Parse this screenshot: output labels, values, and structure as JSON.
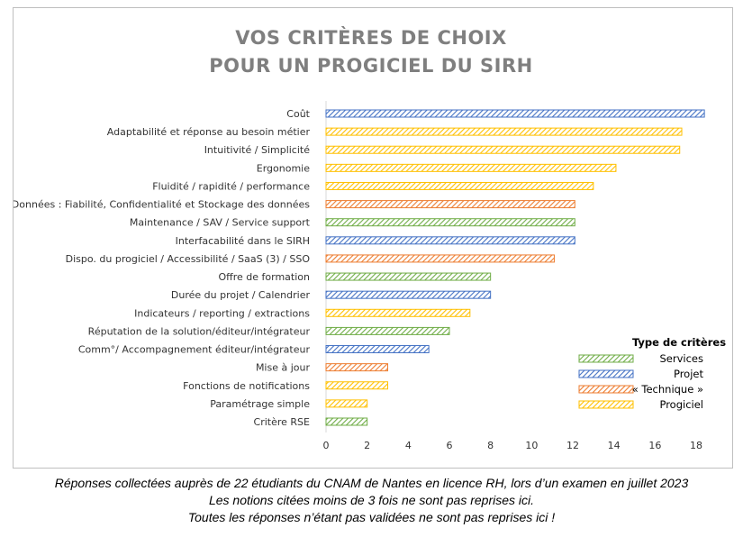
{
  "chart_data": {
    "type": "bar",
    "orientation": "horizontal",
    "title_lines": [
      "VOS CRITÈRES DE CHOIX",
      "POUR UN PROGICIEL DU SIRH"
    ],
    "xlim": [
      0,
      18
    ],
    "xticks": [
      0,
      2,
      4,
      6,
      8,
      10,
      12,
      14,
      16,
      18
    ],
    "legend": {
      "title": "Type de critères",
      "placement": "right",
      "entries": [
        {
          "name": "Services",
          "color": "#70ad47"
        },
        {
          "name": "Projet",
          "color": "#4472c4"
        },
        {
          "name": "« Technique »",
          "color": "#ed7d31"
        },
        {
          "name": "Progiciel",
          "color": "#ffc000"
        }
      ]
    },
    "bars": [
      {
        "label": "Coût",
        "value": 18.4,
        "type": "Projet"
      },
      {
        "label": "Adaptabilité et réponse au besoin métier",
        "value": 17.3,
        "type": "Progiciel"
      },
      {
        "label": "Intuitivité / Simplicité",
        "value": 17.2,
        "type": "Progiciel"
      },
      {
        "label": "Ergonomie",
        "value": 14.1,
        "type": "Progiciel"
      },
      {
        "label": "Fluidité / rapidité / performance",
        "value": 13.0,
        "type": "Progiciel"
      },
      {
        "label": "Données : Fiabilité, Confidentialité et Stockage des données",
        "value": 12.1,
        "type": "« Technique »"
      },
      {
        "label": "Maintenance / SAV / Service support",
        "value": 12.1,
        "type": "Services"
      },
      {
        "label": "Interfacabilité dans le SIRH",
        "value": 12.1,
        "type": "Projet"
      },
      {
        "label": "Dispo. du progiciel / Accessibilité / SaaS (3) / SSO",
        "value": 11.1,
        "type": "« Technique »"
      },
      {
        "label": "Offre de formation",
        "value": 8,
        "type": "Services"
      },
      {
        "label": "Durée du projet / Calendrier",
        "value": 8,
        "type": "Projet"
      },
      {
        "label": "Indicateurs / reporting / extractions",
        "value": 7,
        "type": "Progiciel"
      },
      {
        "label": "Réputation de la solution/éditeur/intégrateur",
        "value": 6,
        "type": "Services"
      },
      {
        "label": "Comm°/ Accompagnement éditeur/intégrateur",
        "value": 5,
        "type": "Projet"
      },
      {
        "label": "Mise à jour",
        "value": 3,
        "type": "« Technique »"
      },
      {
        "label": "Fonctions de notifications",
        "value": 3,
        "type": "Progiciel"
      },
      {
        "label": "Paramétrage simple",
        "value": 2,
        "type": "Progiciel"
      },
      {
        "label": "Critère RSE",
        "value": 2,
        "type": "Services"
      }
    ]
  },
  "caption": {
    "line1": "Réponses collectées auprès de 22 étudiants du CNAM de Nantes en licence RH, lors d’un examen en juillet 2023",
    "line2": "Les notions citées moins de 3 fois ne sont pas reprises ici.",
    "line3": "Toutes les réponses n’étant pas validées ne sont pas reprises ici !"
  }
}
